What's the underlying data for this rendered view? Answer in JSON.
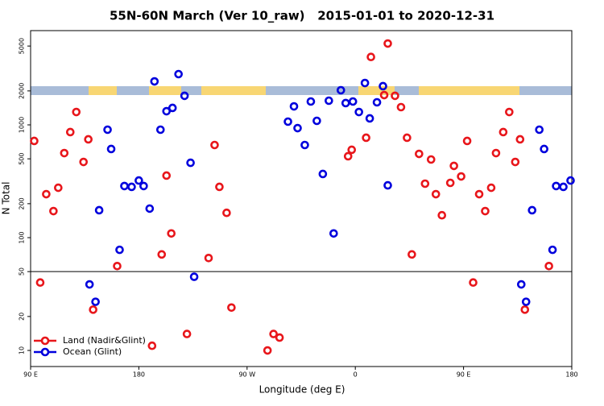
{
  "chart_data": {
    "type": "scatter",
    "title": "55N-60N March (Ver 10_raw)   2015-01-01 to 2020-12-31",
    "x_label": "Longitude (deg E)",
    "y_label": "N Total",
    "xlim": [
      90,
      540
    ],
    "ylim": [
      7.2,
      6850
    ],
    "log_y": true,
    "xticks": [
      {
        "value": 90,
        "label": "90 E"
      },
      180,
      {
        "value": 270,
        "label": "90 W"
      },
      {
        "value": 360,
        "label": "0"
      },
      {
        "value": 450,
        "label": "90 E"
      },
      {
        "value": 540,
        "label": "180"
      }
    ],
    "yticks": [
      10,
      20,
      50,
      100,
      200,
      500,
      1000,
      2000,
      5000
    ],
    "hline": 50,
    "legend": "bottom-left",
    "series": [
      {
        "name": "Land (Nadir&Glint)",
        "color": "#e8161b",
        "x": [
          93,
          98,
          103,
          109,
          113,
          118,
          123,
          128,
          134,
          138,
          142,
          162,
          191,
          199,
          203,
          207,
          220,
          238,
          243,
          247,
          253,
          257,
          287,
          292,
          297,
          354,
          357,
          369,
          373,
          384,
          387,
          393,
          398,
          403,
          407,
          413,
          418,
          423,
          427,
          432,
          439,
          442,
          448,
          453,
          458,
          463,
          468,
          473,
          477,
          483,
          488,
          493,
          497,
          501,
          521
        ],
        "values": [
          720,
          40,
          243,
          172,
          277,
          562,
          863,
          1300,
          469,
          744,
          23,
          56,
          11,
          71,
          355,
          109,
          14,
          66,
          663,
          282,
          166,
          24,
          10,
          14,
          13,
          527,
          601,
          769,
          4000,
          1837,
          5263,
          1810,
          1436,
          769,
          71,
          553,
          301,
          493,
          243,
          158,
          306,
          433,
          349,
          720,
          40,
          243,
          172,
          277,
          562,
          863,
          1300,
          469,
          744,
          23,
          56
        ]
      },
      {
        "name": "Ocean (Glint)",
        "color": "#0000dd",
        "x": [
          139,
          144,
          147,
          154,
          157,
          164,
          168,
          174,
          180,
          184,
          189,
          193,
          198,
          203,
          208,
          213,
          218,
          223,
          226,
          304,
          309,
          312,
          318,
          323,
          328,
          333,
          338,
          342,
          348,
          352,
          358,
          363,
          368,
          372,
          378,
          383,
          387,
          498,
          502,
          507,
          513,
          517,
          524,
          527,
          533,
          539
        ],
        "values": [
          38.5,
          27,
          175,
          906,
          611,
          78,
          287,
          282,
          321,
          287,
          181,
          2430,
          906,
          1322,
          1413,
          2818,
          1810,
          461,
          45,
          1068,
          1459,
          936,
          663,
          1611,
          1086,
          367,
          1638,
          109,
          2028,
          1560,
          1611,
          1300,
          2350,
          1141,
          1585,
          2203,
          291,
          38.5,
          27,
          175,
          906,
          611,
          78,
          287,
          282,
          321
        ]
      }
    ]
  }
}
